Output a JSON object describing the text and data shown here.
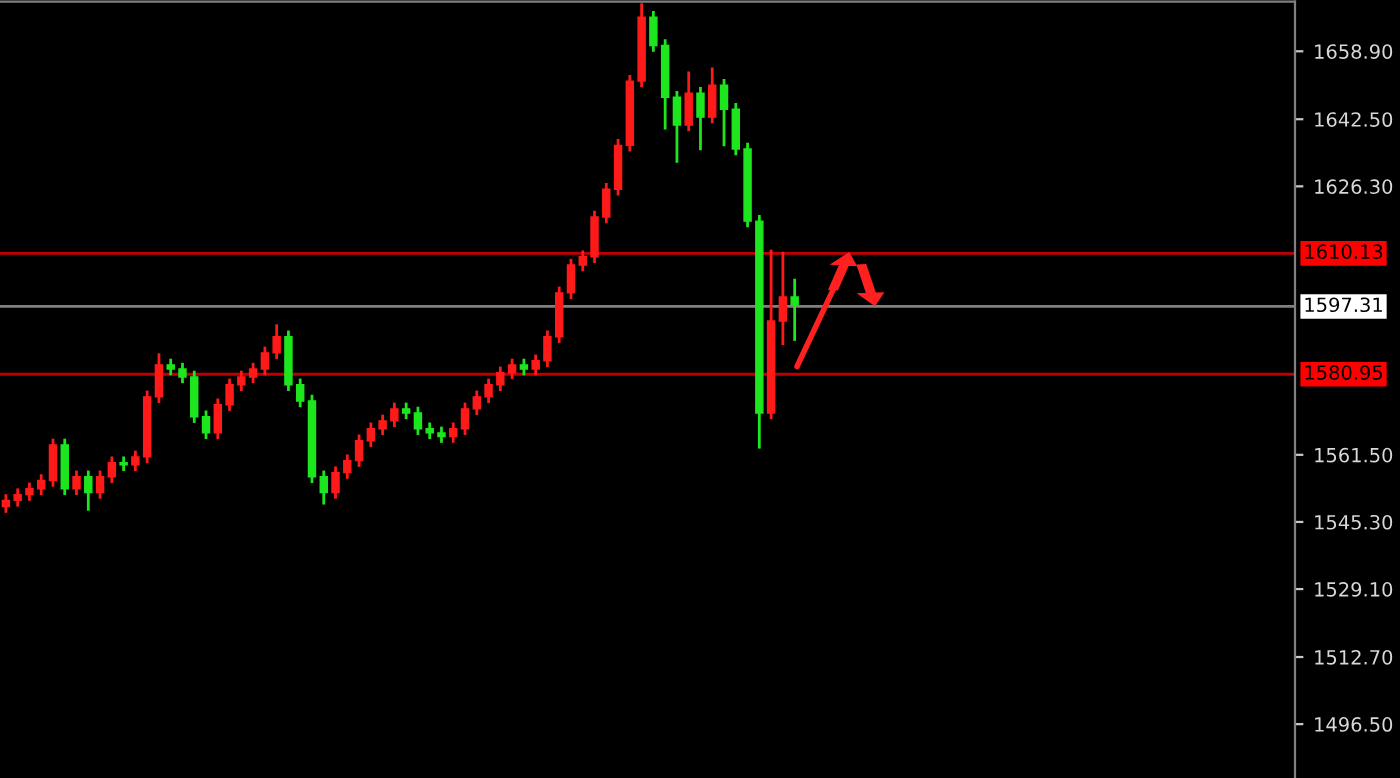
{
  "chart_data": {
    "type": "candlestick",
    "categories": [
      null,
      null,
      null,
      null,
      null,
      null,
      null,
      null,
      null,
      null,
      null,
      null,
      null,
      null,
      null,
      null,
      null,
      null,
      null,
      null,
      null,
      null,
      null,
      null,
      null,
      null,
      null,
      null,
      null,
      null,
      null,
      null,
      null,
      null,
      null,
      null,
      null,
      null,
      null,
      null,
      null,
      null,
      null,
      null,
      null,
      null,
      null,
      null,
      null,
      null,
      null,
      null,
      null,
      null,
      null,
      null,
      null,
      null,
      null,
      null,
      null,
      null,
      null,
      null,
      null,
      null,
      null,
      null,
      null,
      null,
      null,
      null,
      null,
      null,
      null,
      null,
      null,
      null,
      null,
      null,
      null,
      null,
      null,
      null,
      null,
      null,
      null,
      null,
      null,
      null,
      null,
      null,
      null,
      null,
      null,
      null,
      null,
      null,
      null,
      null,
      null,
      null,
      null,
      null,
      null,
      null,
      null,
      null,
      null,
      null
    ],
    "ohlc": [
      [
        1549.0,
        1552.0,
        1547.5,
        1550.5
      ],
      [
        1550.5,
        1553.4,
        1549.0,
        1551.9
      ],
      [
        1551.9,
        1554.8,
        1550.4,
        1553.3
      ],
      [
        1553.3,
        1556.8,
        1551.8,
        1555.3
      ],
      [
        1555.3,
        1565.4,
        1553.8,
        1563.9
      ],
      [
        1563.9,
        1565.4,
        1551.8,
        1553.3
      ],
      [
        1553.3,
        1557.7,
        1551.8,
        1556.2
      ],
      [
        1556.2,
        1557.7,
        1548.0,
        1552.4
      ],
      [
        1552.4,
        1557.7,
        1550.9,
        1556.2
      ],
      [
        1556.2,
        1561.1,
        1554.7,
        1559.6
      ],
      [
        1559.6,
        1561.1,
        1557.6,
        1559.1
      ],
      [
        1559.1,
        1562.5,
        1557.6,
        1561.0
      ],
      [
        1561.0,
        1577.0,
        1559.5,
        1575.5
      ],
      [
        1575.5,
        1586.0,
        1574.0,
        1583.2
      ],
      [
        1583.2,
        1584.7,
        1580.7,
        1582.2
      ],
      [
        1582.2,
        1583.7,
        1578.8,
        1580.3
      ],
      [
        1580.3,
        1581.8,
        1569.2,
        1570.7
      ],
      [
        1570.7,
        1572.2,
        1565.3,
        1566.8
      ],
      [
        1566.8,
        1575.1,
        1565.3,
        1573.6
      ],
      [
        1573.6,
        1579.9,
        1572.1,
        1578.4
      ],
      [
        1578.4,
        1581.8,
        1576.9,
        1580.3
      ],
      [
        1580.3,
        1583.7,
        1578.8,
        1582.2
      ],
      [
        1582.2,
        1587.6,
        1580.7,
        1586.1
      ],
      [
        1586.1,
        1593.0,
        1584.6,
        1590.0
      ],
      [
        1590.0,
        1591.5,
        1576.9,
        1578.4
      ],
      [
        1578.4,
        1579.9,
        1573.0,
        1574.5
      ],
      [
        1574.5,
        1576.0,
        1554.7,
        1556.2
      ],
      [
        1556.2,
        1557.7,
        1549.5,
        1552.4
      ],
      [
        1552.4,
        1558.7,
        1550.9,
        1557.2
      ],
      [
        1557.2,
        1561.6,
        1555.7,
        1560.1
      ],
      [
        1560.1,
        1566.4,
        1558.6,
        1564.9
      ],
      [
        1564.9,
        1569.3,
        1563.4,
        1567.8
      ],
      [
        1567.8,
        1571.2,
        1566.3,
        1569.7
      ],
      [
        1569.7,
        1574.1,
        1568.2,
        1572.6
      ],
      [
        1572.6,
        1574.1,
        1570.1,
        1571.6
      ],
      [
        1571.6,
        1573.1,
        1566.3,
        1567.8
      ],
      [
        1567.8,
        1569.3,
        1565.3,
        1566.8
      ],
      [
        1566.8,
        1568.3,
        1564.4,
        1565.9
      ],
      [
        1565.9,
        1569.3,
        1564.4,
        1567.8
      ],
      [
        1567.8,
        1574.1,
        1566.3,
        1572.6
      ],
      [
        1572.6,
        1577.0,
        1571.1,
        1575.5
      ],
      [
        1575.5,
        1579.9,
        1574.0,
        1578.4
      ],
      [
        1578.4,
        1582.8,
        1576.9,
        1581.3
      ],
      [
        1581.3,
        1584.7,
        1579.8,
        1583.2
      ],
      [
        1583.2,
        1584.7,
        1580.7,
        1582.2
      ],
      [
        1582.2,
        1585.7,
        1580.7,
        1584.2
      ],
      [
        1584.2,
        1591.5,
        1582.7,
        1590.0
      ],
      [
        1590.0,
        1602.1,
        1588.5,
        1600.6
      ],
      [
        1600.6,
        1608.8,
        1599.1,
        1607.3
      ],
      [
        1607.3,
        1610.8,
        1605.8,
        1609.3
      ],
      [
        1609.3,
        1620.4,
        1607.8,
        1618.9
      ],
      [
        1618.9,
        1627.1,
        1617.4,
        1625.6
      ],
      [
        1625.6,
        1637.7,
        1624.1,
        1636.2
      ],
      [
        1636.2,
        1653.2,
        1634.7,
        1651.7
      ],
      [
        1651.7,
        1670.5,
        1650.2,
        1667.1
      ],
      [
        1667.1,
        1668.6,
        1658.8,
        1660.3
      ],
      [
        1660.3,
        1661.8,
        1640.0,
        1647.8
      ],
      [
        1647.8,
        1649.3,
        1632.0,
        1641.1
      ],
      [
        1641.1,
        1654.0,
        1639.6,
        1648.8
      ],
      [
        1648.8,
        1650.3,
        1635.0,
        1643.0
      ],
      [
        1643.0,
        1655.0,
        1641.5,
        1650.7
      ],
      [
        1650.7,
        1652.2,
        1636.0,
        1644.9
      ],
      [
        1644.9,
        1646.4,
        1633.8,
        1635.3
      ],
      [
        1635.3,
        1636.8,
        1616.4,
        1617.9
      ],
      [
        1617.9,
        1619.4,
        1563.0,
        1571.6
      ],
      [
        1571.6,
        1611.0,
        1570.1,
        1593.8
      ],
      [
        1593.8,
        1610.5,
        1588.0,
        1599.6
      ],
      [
        1599.6,
        1604.0,
        1589.0,
        1597.7
      ],
      null,
      null,
      null,
      null,
      null,
      null,
      null,
      null,
      null,
      null,
      null,
      null,
      null,
      null,
      null,
      null,
      null,
      null,
      null,
      null,
      null,
      null,
      null,
      null,
      null,
      null,
      null,
      null,
      null,
      null,
      null,
      null,
      null,
      null,
      null,
      null,
      null,
      null,
      null,
      null,
      null,
      null
    ],
    "colors": [
      "#ff1a1a",
      "#ff1a1a",
      "#ff1a1a",
      "#ff1a1a",
      "#ff1a1a",
      "#1ee61e",
      "#ff1a1a",
      "#1ee61e",
      "#ff1a1a",
      "#ff1a1a",
      "#1ee61e",
      "#ff1a1a",
      "#ff1a1a",
      "#ff1a1a",
      "#1ee61e",
      "#1ee61e",
      "#1ee61e",
      "#1ee61e",
      "#ff1a1a",
      "#ff1a1a",
      "#ff1a1a",
      "#ff1a1a",
      "#ff1a1a",
      "#ff1a1a",
      "#1ee61e",
      "#1ee61e",
      "#1ee61e",
      "#1ee61e",
      "#ff1a1a",
      "#ff1a1a",
      "#ff1a1a",
      "#ff1a1a",
      "#ff1a1a",
      "#ff1a1a",
      "#1ee61e",
      "#1ee61e",
      "#1ee61e",
      "#1ee61e",
      "#ff1a1a",
      "#ff1a1a",
      "#ff1a1a",
      "#ff1a1a",
      "#ff1a1a",
      "#ff1a1a",
      "#1ee61e",
      "#ff1a1a",
      "#ff1a1a",
      "#ff1a1a",
      "#ff1a1a",
      "#ff1a1a",
      "#ff1a1a",
      "#ff1a1a",
      "#ff1a1a",
      "#ff1a1a",
      "#ff1a1a",
      "#1ee61e",
      "#1ee61e",
      "#1ee61e",
      "#ff1a1a",
      "#1ee61e",
      "#ff1a1a",
      "#1ee61e",
      "#1ee61e",
      "#1ee61e",
      "#1ee61e",
      "#ff1a1a",
      "#ff1a1a",
      "#1ee61e",
      null,
      null,
      null,
      null,
      null,
      null,
      null,
      null,
      null,
      null,
      null,
      null,
      null,
      null,
      null,
      null,
      null,
      null,
      null,
      null,
      null,
      null,
      null,
      null,
      null,
      null,
      null,
      null,
      null,
      null,
      null,
      null,
      null,
      null,
      null,
      null,
      null,
      null,
      null,
      null,
      null,
      null
    ],
    "ylim": [
      1483.5,
      1670.9
    ],
    "yticks": [
      {
        "value": 1496.5,
        "label": "1496.50"
      },
      {
        "value": 1512.7,
        "label": "1512.70"
      },
      {
        "value": 1529.1,
        "label": "1529.10"
      },
      {
        "value": 1545.3,
        "label": "1545.30"
      },
      {
        "value": 1561.5,
        "label": "1561.50"
      },
      {
        "value": 1626.3,
        "label": "1626.30"
      },
      {
        "value": 1642.5,
        "label": "1642.50"
      },
      {
        "value": 1658.9,
        "label": "1658.90"
      }
    ],
    "ref_lines": [
      {
        "axis": "y",
        "value": 1610.13,
        "label": "1610.13",
        "color": "#c00000"
      },
      {
        "axis": "y",
        "value": 1597.31,
        "label": "1597.31",
        "color": "#808080"
      },
      {
        "axis": "y",
        "value": 1580.95,
        "label": "1580.95",
        "color": "#c00000"
      }
    ],
    "grid": false
  }
}
